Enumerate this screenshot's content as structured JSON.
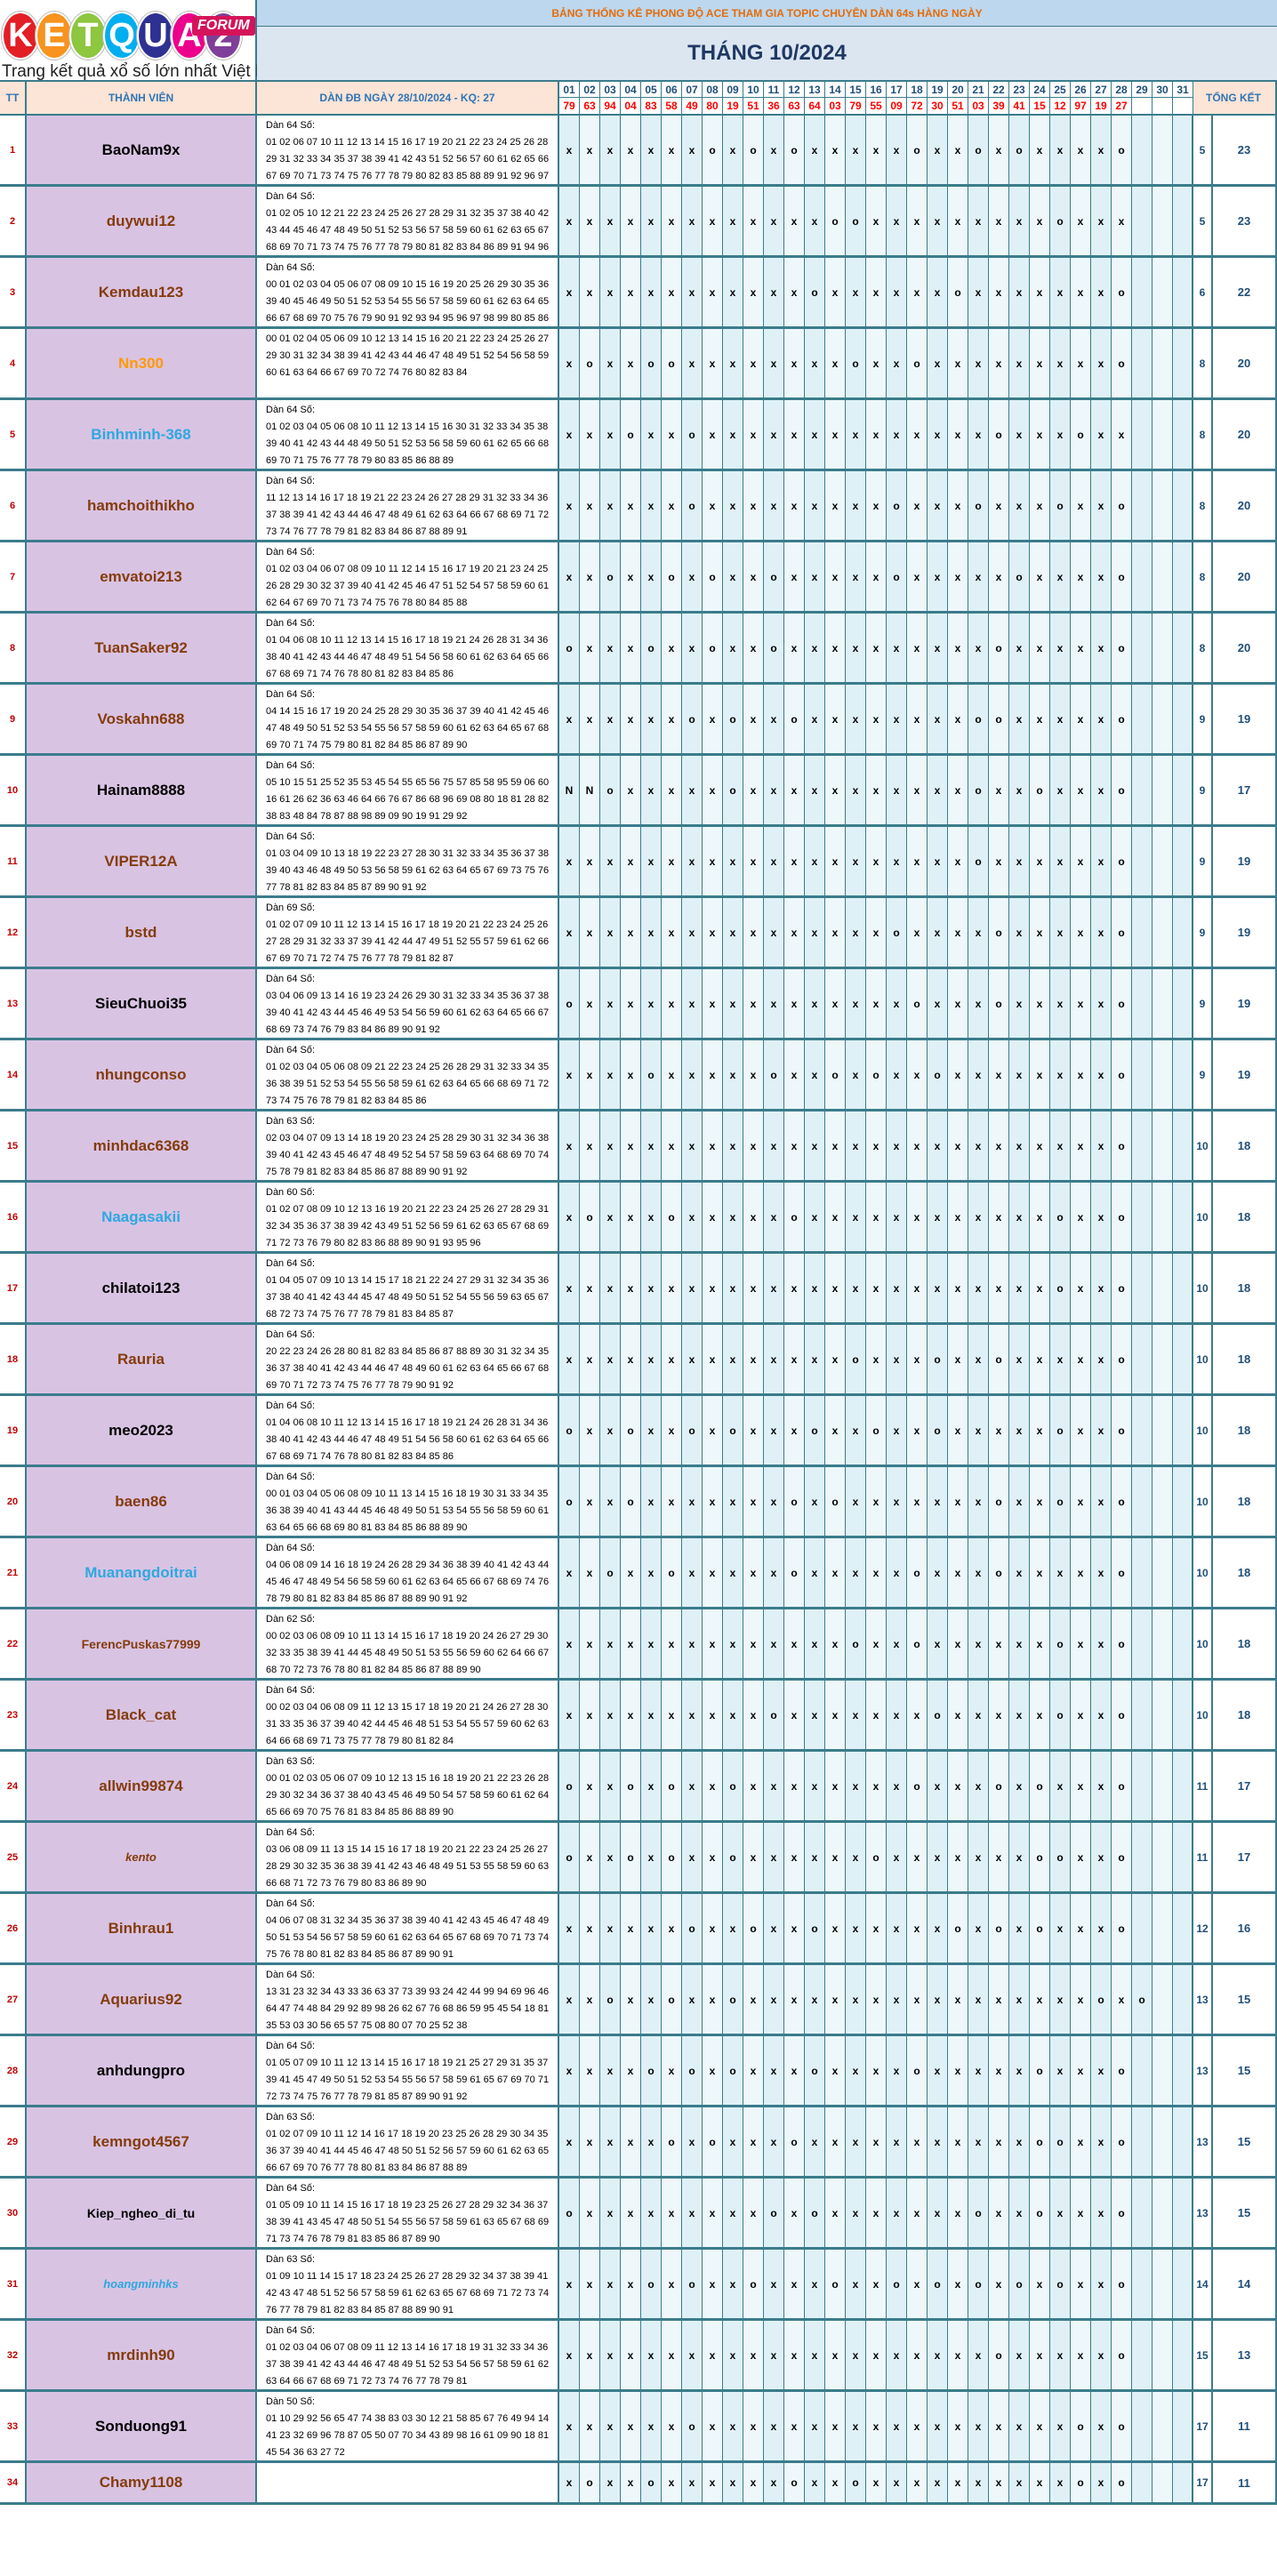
{
  "logo": {
    "letters": [
      "K",
      "E",
      "T",
      "Q",
      "U",
      "A",
      "2"
    ],
    "letter_colors": [
      "#e41e25",
      "#f7931e",
      "#8dc63f",
      "#00aeef",
      "#2e3192",
      "#ec008c",
      "#7f3f98"
    ],
    "forum_label": "FORUM",
    "tagline": "Trang kết quả xổ số lớn nhất Việt Nam"
  },
  "banner": "BẢNG THỐNG KÊ PHONG ĐỘ ACE THAM GIA TOPIC CHUYÊN DÀN 64s HÀNG NGÀY",
  "month_title": "THÁNG 10/2024",
  "headers": {
    "tt": "TT",
    "member": "THÀNH VIÊN",
    "dan": "DÀN ĐB NGÀY 28/10/2024 - KQ: 27",
    "total": "TỔNG KẾT"
  },
  "days": [
    "01",
    "02",
    "03",
    "04",
    "05",
    "06",
    "07",
    "08",
    "09",
    "10",
    "11",
    "12",
    "13",
    "14",
    "15",
    "16",
    "17",
    "18",
    "19",
    "20",
    "21",
    "22",
    "23",
    "24",
    "25",
    "26",
    "27",
    "28",
    "29",
    "30",
    "31"
  ],
  "results": [
    "79",
    "63",
    "94",
    "04",
    "83",
    "58",
    "49",
    "80",
    "19",
    "51",
    "36",
    "63",
    "64",
    "03",
    "79",
    "55",
    "09",
    "72",
    "30",
    "51",
    "03",
    "39",
    "41",
    "15",
    "12",
    "97",
    "19",
    "27",
    "",
    "",
    ""
  ],
  "colors": {
    "name_black": "#000000",
    "name_brown": "#843c0c",
    "name_orange": "#ff9900",
    "name_blue": "#2ea8e0",
    "row_bg": "#d9c3e3",
    "mark_bg": "#dff1f7",
    "grid": "#3b7c8c"
  },
  "rows": [
    {
      "tt": "1",
      "name": "BaoNam9x",
      "color": "#000000",
      "style": "normal",
      "dan_title": "Dàn 64 Số:",
      "dan": "01 02 06 07 10 11 12 13 14 15 16 17 19 20 21 22 23 24 25 26 28 29 31 32 33 34 35 37 38 39 41 42 43 51 52 56 57 60 61 62 65 66 67 69 70 71 73 74 75 76 77 78 79 80 82 83 85 88 89 91 92 96 97 98",
      "marks": "xxxxxxxoxoxoxxxxxoxxoxoxxxxo",
      "o": "5",
      "total": "23"
    },
    {
      "tt": "2",
      "name": "duywui12",
      "color": "#843c0c",
      "style": "normal",
      "dan_title": "Dàn 64 Số:",
      "dan": "01 02 05 10 12 21 22 23 24 25 26 27 28 29 31 32 35 37 38 40 42 43 44 45 46 47 48 49 50 51 52 53 56 57 58 59 60 61 62 63 65 67 68 69 70 71 73 74 75 76 77 78 79 80 81 82 83 84 86 89 91 94 96 98",
      "marks": "xxxxxxxxxxxxxooxxxxxxxxxoxxx",
      "o": "5",
      "total": "23"
    },
    {
      "tt": "3",
      "name": "Kemdau123",
      "color": "#843c0c",
      "style": "normal",
      "dan_title": "Dàn 64 Số:",
      "dan": "00 01 02 03 04 05 06 07 08 09 10 15 16 19 20 25 26 29 30 35 36 39 40 45 46 49 50 51 52 53 54 55 56 57 58 59 60 61 62 63 64 65 66 67 68 69 70 75 76 79 90 91 92 93 94 95 96 97 98 99 80 85 86 89",
      "marks": "xxxxxxxxxxxxoxxxxxxoxxxxxxxo",
      "o": "6",
      "total": "22"
    },
    {
      "tt": "4",
      "name": "Nn300",
      "color": "#ff9900",
      "style": "normal",
      "dan_title": "",
      "dan": "00 01 02 04 05 06 09 10 12 13 14 15 16 20 21 22 23 24 25 26 27 29 30 31 32 34 38 39 41 42 43 44 46 47 48 49 51 52 54 56 58 59 60 61 63 64 66 67 69 70 72 74 76 80 82 83 84",
      "marks": "xoxxooxxxxxxxxoxxoxxxxxxxxxo",
      "o": "8",
      "total": "20"
    },
    {
      "tt": "5",
      "name": "Binhminh-368",
      "color": "#2ea8e0",
      "style": "normal",
      "dan_title": "Dàn 64 Số:",
      "dan": "01 02 03 04 05 06 08 10 11 12 13 14 15 16 30 31 32 33 34 35 38 39 40 41 42 43 44 48 49 50 51 52 53 56 58 59 60 61 62 65 66 68 69 70 71 75 76 77 78 79 80 83 85 86 88 89",
      "marks": "xxxoxxoxxxxxxxxxxxxxxoxxxoxx",
      "o": "8",
      "total": "20"
    },
    {
      "tt": "6",
      "name": "hamchoithikho",
      "color": "#843c0c",
      "style": "normal",
      "dan_title": "Dàn 64 Số:",
      "dan": "11 12 13 14 16 17 18 19 21 22 23 24 26 27 28 29 31 32 33 34 36 37 38 39 41 42 43 44 46 47 48 49 61 62 63 64 66 67 68 69 71 72 73 74 76 77 78 79 81 82 83 84 86 87 88 89 91",
      "marks": "xxxxxxoxxxxxxxxxoxxxoxxxoxxo",
      "o": "8",
      "total": "20"
    },
    {
      "tt": "7",
      "name": "emvatoi213",
      "color": "#843c0c",
      "style": "normal",
      "dan_title": "Dàn 64 Số:",
      "dan": "01 02 03 04 06 07 08 09 10 11 12 14 15 16 17 19 20 21 23 24 25 26 28 29 30 32 37 39 40 41 42 45 46 47 51 52 54 57 58 59 60 61 62 64 67 69 70 71 73 74 75 76 78 80 84 85 88",
      "marks": "xxoxxoxoxxoxxxxxoxxxxxoxxxxo",
      "o": "8",
      "total": "20"
    },
    {
      "tt": "8",
      "name": "TuanSaker92",
      "color": "#843c0c",
      "style": "normal",
      "dan_title": "Dàn 64 Số:",
      "dan": "01 04 06 08 10 11 12 13 14 15 16 17 18 19 21 24 26 28 31 34 36 38 40 41 42 43 44 46 47 48 49 51 54 56 58 60 61 62 63 64 65 66 67 68 69 71 74 76 78 80 81 82 83 84 85 86",
      "marks": "oxxxoxxoxxoxxxxxxxxxxoxxxxxo",
      "o": "8",
      "total": "20"
    },
    {
      "tt": "9",
      "name": "Voskahn688",
      "color": "#843c0c",
      "style": "normal",
      "dan_title": "Dàn 64 Số:",
      "dan": "04 14 15 16 17 19 20 24 25 28 29 30 35 36 37 39 40 41 42 45 46 47 48 49 50 51 52 53 54 55 56 57 58 59 60 61 62 63 64 65 67 68 69 70 71 74 75 79 80 81 82 84 85 86 87 89 90",
      "marks": "xxxxxxoxoxxoxxxxxxxxooxxxxxo",
      "o": "9",
      "total": "19"
    },
    {
      "tt": "10",
      "name": "Hainam8888",
      "color": "#000000",
      "style": "normal",
      "dan_title": "Dàn 64 Số:",
      "dan": "05 10 15 51 25 52 35 53 45 54 55 65 56 75 57 85 58 95 59 06 60 16 61 26 62 36 63 46 64 66 76 67 86 68 96 69 08 80 18 81 28 82 38 83 48 84 78 87 88 98 89 09 90 19 91 29 92",
      "marks": "NNoxxxxxoxxxxxxxxxxxoxxoxxxo",
      "o": "9",
      "total": "17"
    },
    {
      "tt": "11",
      "name": "VIPER12A",
      "color": "#843c0c",
      "style": "normal",
      "dan_title": "Dàn 64 Số:",
      "dan": "01 03 04 09 10 13 18 19 22 23 27 28 30 31 32 33 34 35 36 37 38 39 40 43 46 48 49 50 53 56 58 59 61 62 63 64 65 67 69 73 75 76 77 78 81 82 83 84 85 87 89 90 91 92",
      "marks": "xxxxxxxxxxxxxxxxxxxxoxxxxxxo",
      "o": "9",
      "total": "19"
    },
    {
      "tt": "12",
      "name": "bstd",
      "color": "#843c0c",
      "style": "normal",
      "dan_title": "Dàn 69 Số:",
      "dan": "01 02 07 09 10 11 12 13 14 15 16 17 18 19 20 21 22 23 24 25 26 27 28 29 31 32 33 37 39 41 42 44 47 49 51 52 55 57 59 61 62 66 67 69 70 71 72 74 75 76 77 78 79 81 82 87",
      "marks": "xxxxxxxxxxxxxxxxoxxxxoxxxxxo",
      "o": "9",
      "total": "19"
    },
    {
      "tt": "13",
      "name": "SieuChuoi35",
      "color": "#000000",
      "style": "normal",
      "dan_title": "Dàn 64 Số:",
      "dan": "03 04 06 09 13 14 16 19 23 24 26 29 30 31 32 33 34 35 36 37 38 39 40 41 42 43 44 45 46 49 53 54 56 59 60 61 62 63 64 65 66 67 68 69 73 74 76 79 83 84 86 89 90 91 92",
      "marks": "oxxxxxxxxxxxxxxxxoxxxoxxxxxo",
      "o": "9",
      "total": "19"
    },
    {
      "tt": "14",
      "name": "nhungconso",
      "color": "#843c0c",
      "style": "normal",
      "dan_title": "Dàn 64 Số:",
      "dan": "01 02 03 04 05 06 08 09 21 22 23 24 25 26 28 29 31 32 33 34 35 36 38 39 51 52 53 54 55 56 58 59 61 62 63 64 65 66 68 69 71 72 73 74 75 76 78 79 81 82 83 84 85 86",
      "marks": "xxxxoxxxxxoxxoxoxxoxxxxxxxxo",
      "o": "9",
      "total": "19"
    },
    {
      "tt": "15",
      "name": "minhdac6368",
      "color": "#843c0c",
      "style": "normal",
      "dan_title": "Dàn 63 Số:",
      "dan": "02 03 04 07 09 13 14 18 19 20 23 24 25 28 29 30 31 32 34 36 38 39 40 41 42 43 45 46 47 48 49 52 54 57 58 59 63 64 68 69 70 74 75 78 79 81 82 83 84 85 86 87 88 89 90 91 92",
      "marks": "xxxxxxxxxxxxxxxxxxxxxxxxxxxo",
      "o": "10",
      "total": "18"
    },
    {
      "tt": "16",
      "name": "Naagasakii",
      "color": "#2ea8e0",
      "style": "normal",
      "dan_title": "Dàn 60 Số:",
      "dan": "01 02 07 08 09 10 12 13 16 19 20 21 22 23 24 25 26 27 28 29 31 32 34 35 36 37 38 39 42 43 49 51 52 56 59 61 62 63 65 67 68 69 71 72 73 76 79 80 82 83 86 88 89 90 91 93 95 96",
      "marks": "xoxxxoxxxxxoxxxxxxxxxxxxoxxo",
      "o": "10",
      "total": "18"
    },
    {
      "tt": "17",
      "name": "chilatoi123",
      "color": "#000000",
      "style": "normal",
      "dan_title": "Dàn 64 Số:",
      "dan": "01 04 05 07 09 10 13 14 15 17 18 21 22 24 27 29 31 32 34 35 36 37 38 40 41 42 43 44 45 47 48 49 50 51 52 54 55 56 59 63 65 67 68 72 73 74 75 76 77 78 79 81 83 84 85 87",
      "marks": "xxxxxxxxxxxxxxxxxxxxxxxxoxxo",
      "o": "10",
      "total": "18"
    },
    {
      "tt": "18",
      "name": "Rauria",
      "color": "#843c0c",
      "style": "normal",
      "dan_title": "Dàn 64 Số:",
      "dan": "20 22 23 24 26 28 80 81 82 83 84 85 86 87 88 89 30 31 32 34 35 36 37 38 40 41 42 43 44 46 47 48 49 60 61 62 63 64 65 66 67 68 69 70 71 72 73 74 75 76 77 78 79 90 91 92",
      "marks": "xxxxxxxxxxxxxxoxxxoxxoxxxxxo",
      "o": "10",
      "total": "18"
    },
    {
      "tt": "19",
      "name": "meo2023",
      "color": "#000000",
      "style": "normal",
      "dan_title": "Dàn 64 Số:",
      "dan": "01 04 06 08 10 11 12 13 14 15 16 17 18 19 21 24 26 28 31 34 36 38 40 41 42 43 44 46 47 48 49 51 54 56 58 60 61 62 63 64 65 66 67 68 69 71 74 76 78 80 81 82 83 84 85 86",
      "marks": "oxxoxxoxoxxxoxxoxxoxxxxxoxxo",
      "o": "10",
      "total": "18"
    },
    {
      "tt": "20",
      "name": "baen86",
      "color": "#843c0c",
      "style": "normal",
      "dan_title": "Dàn 64 Số:",
      "dan": "00 01 03 04 05 06 08 09 10 11 13 14 15 16 18 19 30 31 33 34 35 36 38 39 40 41 43 44 45 46 48 49 50 51 53 54 55 56 58 59 60 61 63 64 65 66 68 69 80 81 83 84 85 86 88 89 90",
      "marks": "oxxoxxxxxxxoxoxxxxxxxoxxoxxo",
      "o": "10",
      "total": "18"
    },
    {
      "tt": "21",
      "name": "Muanangdoitrai",
      "color": "#2ea8e0",
      "style": "normal",
      "dan_title": "Dàn 64 Số:",
      "dan": "04 06 08 09 14 16 18 19 24 26 28 29 34 36 38 39 40 41 42 43 44 45 46 47 48 49 54 56 58 59 60 61 62 63 64 65 66 67 68 69 74 76 78 79 80 81 82 83 84 85 86 87 88 89 90 91 92",
      "marks": "xxoxxoxxxxxoxxxxxoxxxoxxxxxo",
      "o": "10",
      "total": "18"
    },
    {
      "tt": "22",
      "name": "FerencPuskas77999",
      "color": "#843c0c",
      "style": "normal",
      "dan_title": "Dàn 62 Số:",
      "dan": "00 02 03 06 08 09 10 11 13 14 15 16 17 18 19 20 24 26 27 29 30 32 33 35 38 39 41 44 45 48 49 50 51 53 55 56 59 60 62 64 66 67 68 70 72 73 76 78 80 81 82 84 85 86 87 88 89 90",
      "marks": "xxxxxxxxxxxxxxoxxoxxxxxxoxxo",
      "o": "10",
      "total": "18"
    },
    {
      "tt": "23",
      "name": "Black_cat",
      "color": "#843c0c",
      "style": "normal",
      "dan_title": "Dàn 64 Số:",
      "dan": "00 02 03 04 06 08 09 11 12 13 15 17 18 19 20 21 24 26 27 28 30 31 33 35 36 37 39 40 42 44 45 46 48 51 53 54 55 57 59 60 62 63 64 66 68 69 71 73 75 77 78 79 80 81 82 84",
      "marks": "xxxxxxxxxxoxxxxxxxoxxxxxoxxo",
      "o": "10",
      "total": "18"
    },
    {
      "tt": "24",
      "name": "allwin99874",
      "color": "#843c0c",
      "style": "normal",
      "dan_title": "Dàn 63 Số:",
      "dan": "00 01 02 03 05 06 07 09 10 12 13 15 16 18 19 20 21 22 23 26 28 29 30 32 34 36 37 38 40 43 45 46 49 50 54 57 58 59 60 61 62 64 65 66 69 70 75 76 81 83 84 85 86 88 89 90",
      "marks": "oxxoxoxxoxxxxxxxxoxxxoxoxxxo",
      "o": "11",
      "total": "17"
    },
    {
      "tt": "25",
      "name": "kento",
      "color": "#843c0c",
      "style": "italic",
      "dan_title": "Dàn 64 Số:",
      "dan": "03 06 08 09 11 13 15 14 15 16 17 18 19 20 21 22 23 24 25 26 27 28 29 30 32 35 36 38 39 41 42 43 46 48 49 51 53 55 58 59 60 63 66 68 71 72 73 76 79 80 83 86 89 90",
      "marks": "oxxoxoxxoxxxxxxoxxxxxxxooxxo",
      "o": "11",
      "total": "17"
    },
    {
      "tt": "26",
      "name": "Binhrau1",
      "color": "#843c0c",
      "style": "normal",
      "dan_title": "Dàn 64 Số:",
      "dan": "04 06 07 08 31 32 34 35 36 37 38 39 40 41 42 43 45 46 47 48 49 50 51 53 54 56 57 58 59 60 61 62 63 64 65 67 68 69 70 71 73 74 75 76 78 80 81 82 83 84 85 86 87 89 90 91",
      "marks": "xxxxxxoxxoxxoxxxxxxoxoxoxxxo",
      "o": "12",
      "total": "16"
    },
    {
      "tt": "27",
      "name": "Aquarius92",
      "color": "#843c0c",
      "style": "normal",
      "dan_title": "Dàn 64 Số:",
      "dan": "13 31 23 32 34 43 33 36 63 37 73 39 93 24 42 44 99 94 69 96 46 64 47 74 48 84 29 92 89 98 26 62 67 76 68 86 59 95 45 54 18 81 35 53 03 30 56 65 57 75 08 80 07 70 25 52 38",
      "marks": "xxoxxoxxoxxxxxxxxxxxxxxxxxoxo",
      "o": "13",
      "total": "15"
    },
    {
      "tt": "28",
      "name": "anhdungpro",
      "color": "#000000",
      "style": "normal",
      "dan_title": "Dàn 64 Số:",
      "dan": "01 05 07 09 10 11 12 13 14 15 16 17 18 19 21 25 27 29 31 35 37 39 41 45 47 49 50 51 52 53 54 55 56 57 58 59 61 65 67 69 70 71 72 73 74 75 76 77 78 79 81 85 87 89 90 91 92",
      "marks": "xxxxoxoxoxxxoxxxxoxxxxxoxxxo",
      "o": "13",
      "total": "15"
    },
    {
      "tt": "29",
      "name": "kemngot4567",
      "color": "#843c0c",
      "style": "normal",
      "dan_title": "Dàn 63 Số:",
      "dan": "01 02 07 09 10 11 12 14 16 17 18 19 20 23 25 26 28 29 30 34 35 36 37 39 40 41 44 45 46 47 48 50 51 52 56 57 59 60 61 62 63 65 66 67 69 70 76 77 78 80 81 83 84 86 87 88 89",
      "marks": "xxxxxoxoxxxoxxxxxxxxxxxooxxo",
      "o": "13",
      "total": "15"
    },
    {
      "tt": "30",
      "name": "Kiep_ngheo_di_tu",
      "color": "#000000",
      "style": "normal",
      "dan_title": "Dàn 64 Số:",
      "dan": "01 05 09 10 11 14 15 16 17 18 19 23 25 26 27 28 29 32 34 36 37 38 39 41 43 45 47 48 50 51 54 55 56 57 58 59 61 63 65 67 68 69 71 73 74 76 78 79 81 83 85 86 87 89 90",
      "marks": "oxxxxxxxxxoxoxxxxxxxoxxoxxxo",
      "o": "13",
      "total": "15"
    },
    {
      "tt": "31",
      "name": "hoangminhks",
      "color": "#2ea8e0",
      "style": "italic",
      "dan_title": "Dàn 63 Số:",
      "dan": "01 09 10 11 14 15 17 18 23 24 25 26 27 28 29 32 34 37 38 39 41 42 43 47 48 51 52 56 57 58 59 61 62 63 65 67 68 69 71 72 73 74 76 77 78 79 81 82 83 84 85 87 88 89 90 91",
      "marks": "xxxxoxoxxoxxxoxxoxoxoxoxoxxo",
      "o": "14",
      "total": "14"
    },
    {
      "tt": "32",
      "name": "mrdinh90",
      "color": "#843c0c",
      "style": "normal",
      "dan_title": "Dàn 64 Số:",
      "dan": "01 02 03 04 06 07 08 09 11 12 13 14 16 17 18 19 31 32 33 34 36 37 38 39 41 42 43 44 46 47 48 49 51 52 53 54 56 57 58 59 61 62 63 64 66 67 68 69 71 72 73 74 76 77 78 79 81",
      "marks": "xxxxxxxxxxxxxxxxxxxxxoxxxxxo",
      "o": "15",
      "total": "13"
    },
    {
      "tt": "33",
      "name": "Sonduong91",
      "color": "#000000",
      "style": "normal",
      "dan_title": "Dàn 50 Số:",
      "dan": "01 10 29 92 56 65 47 74 38 83 03 30 12 21 58 85 67 76 49 94 14 41 23 32 69 96 78 87 05 50 07 70 34 43 89 98 16 61 09 90 18 81 45 54 36 63 27 72",
      "marks": "xxxxxxoxxxxxxxxxxxxxxxxxxoxo",
      "o": "17",
      "total": "11"
    },
    {
      "tt": "34",
      "name": "Chamy1108",
      "color": "#843c0c",
      "style": "normal",
      "dan_title": "",
      "dan": "",
      "marks": "xoxxoxxxxxxoxxoxxxxxxxxxxoxo",
      "o": "17",
      "total": "11"
    }
  ]
}
